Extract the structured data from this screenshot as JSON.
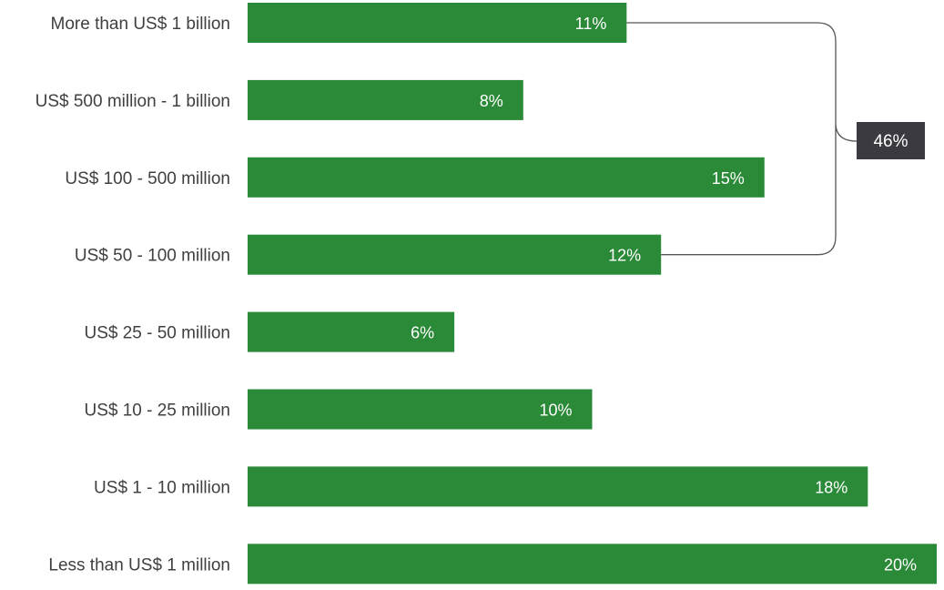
{
  "chart_data": {
    "type": "bar",
    "orientation": "horizontal",
    "categories": [
      "More than US$ 1 billion",
      "US$ 500 million - 1 billion",
      "US$ 100 - 500 million",
      "US$ 50 - 100 million",
      "US$ 25 - 50 million",
      "US$ 10 - 25 million",
      "US$ 1 - 10 million",
      "Less than US$ 1 million"
    ],
    "values": [
      11,
      8,
      15,
      12,
      6,
      10,
      18,
      20
    ],
    "value_labels": [
      "11%",
      "8%",
      "15%",
      "12%",
      "6%",
      "10%",
      "18%",
      "20%"
    ],
    "xlim": [
      0,
      20
    ],
    "grid": false,
    "bracket": {
      "label": "46%",
      "value": 46,
      "spans_categories": [
        0,
        3
      ]
    },
    "colors": {
      "bar": "#2a8a37",
      "callout_bg": "#3a3a40",
      "bracket_line": "#555555"
    }
  }
}
